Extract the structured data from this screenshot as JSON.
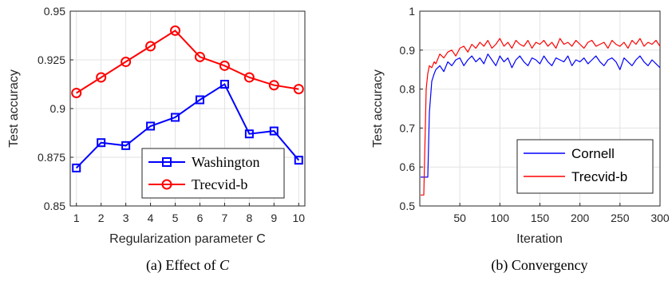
{
  "chart_data": [
    {
      "type": "line",
      "caption": "(a) Effect of C",
      "caption_prefix": "(a) Effect of ",
      "caption_var": "C",
      "xlabel": "Regularization parameter C",
      "ylabel": "Test accuracy",
      "x": [
        1,
        2,
        3,
        4,
        5,
        6,
        7,
        8,
        9,
        10
      ],
      "xlim": [
        0.75,
        10.25
      ],
      "ylim": [
        0.85,
        0.95
      ],
      "xticks": [
        "1",
        "2",
        "3",
        "4",
        "5",
        "6",
        "7",
        "8",
        "9",
        "10"
      ],
      "yticks": [
        "0.85",
        "0.875",
        "0.9",
        "0.925",
        "0.95"
      ],
      "ytick_values": [
        0.85,
        0.875,
        0.9,
        0.925,
        0.95
      ],
      "grid": true,
      "legend_position": "bottom-right",
      "series": [
        {
          "name": "Washington",
          "color": "#0000ff",
          "marker": "square",
          "values": [
            0.8695,
            0.8825,
            0.881,
            0.891,
            0.8955,
            0.9045,
            0.9125,
            0.887,
            0.8885,
            0.8735
          ]
        },
        {
          "name": "Trecvid-b",
          "color": "#ff0000",
          "marker": "circle",
          "values": [
            0.908,
            0.916,
            0.924,
            0.932,
            0.94,
            0.9265,
            0.922,
            0.916,
            0.912,
            0.91
          ]
        }
      ]
    },
    {
      "type": "line",
      "caption": "(b) Convergency",
      "xlabel": "Iteration",
      "ylabel": "Test accuracy",
      "xlim": [
        0,
        300
      ],
      "ylim": [
        0.5,
        1
      ],
      "xticks": [
        "50",
        "100",
        "150",
        "200",
        "250",
        "300"
      ],
      "xtick_values": [
        50,
        100,
        150,
        200,
        250,
        300
      ],
      "yticks": [
        "0.5",
        "0.6",
        "0.7",
        "0.8",
        "0.9",
        "1"
      ],
      "ytick_values": [
        0.5,
        0.6,
        0.7,
        0.8,
        0.9,
        1.0
      ],
      "grid": true,
      "legend_position": "bottom-right",
      "series": [
        {
          "name": "Cornell",
          "color": "#0000ff",
          "x": [
            1,
            5,
            10,
            12,
            15,
            18,
            20,
            25,
            30,
            35,
            40,
            45,
            50,
            55,
            60,
            65,
            70,
            75,
            80,
            85,
            90,
            95,
            100,
            105,
            110,
            115,
            120,
            125,
            130,
            135,
            140,
            145,
            150,
            155,
            160,
            165,
            170,
            175,
            180,
            185,
            190,
            195,
            200,
            205,
            210,
            215,
            220,
            225,
            230,
            235,
            240,
            245,
            250,
            255,
            260,
            265,
            270,
            275,
            280,
            285,
            290,
            295,
            300
          ],
          "values": [
            0.574,
            0.574,
            0.574,
            0.74,
            0.82,
            0.84,
            0.85,
            0.86,
            0.845,
            0.87,
            0.86,
            0.875,
            0.88,
            0.86,
            0.875,
            0.885,
            0.87,
            0.88,
            0.865,
            0.89,
            0.875,
            0.86,
            0.885,
            0.87,
            0.88,
            0.855,
            0.875,
            0.885,
            0.87,
            0.86,
            0.88,
            0.875,
            0.865,
            0.885,
            0.87,
            0.86,
            0.88,
            0.875,
            0.87,
            0.885,
            0.86,
            0.875,
            0.87,
            0.88,
            0.865,
            0.875,
            0.885,
            0.87,
            0.86,
            0.875,
            0.88,
            0.87,
            0.85,
            0.88,
            0.87,
            0.86,
            0.875,
            0.885,
            0.87,
            0.86,
            0.875,
            0.865,
            0.855
          ]
        },
        {
          "name": "Trecvid-b",
          "color": "#ff0000",
          "x": [
            1,
            5,
            8,
            10,
            12,
            15,
            18,
            20,
            25,
            30,
            35,
            40,
            45,
            50,
            55,
            60,
            65,
            70,
            75,
            80,
            85,
            90,
            95,
            100,
            105,
            110,
            115,
            120,
            125,
            130,
            135,
            140,
            145,
            150,
            155,
            160,
            165,
            170,
            175,
            180,
            185,
            190,
            195,
            200,
            205,
            210,
            215,
            220,
            225,
            230,
            235,
            240,
            245,
            250,
            255,
            260,
            265,
            270,
            275,
            280,
            285,
            290,
            295,
            300
          ],
          "values": [
            0.528,
            0.528,
            0.8,
            0.84,
            0.86,
            0.855,
            0.87,
            0.865,
            0.89,
            0.88,
            0.895,
            0.9,
            0.885,
            0.905,
            0.91,
            0.895,
            0.915,
            0.905,
            0.92,
            0.91,
            0.925,
            0.905,
            0.915,
            0.93,
            0.91,
            0.92,
            0.905,
            0.925,
            0.915,
            0.91,
            0.925,
            0.905,
            0.92,
            0.915,
            0.925,
            0.91,
            0.92,
            0.905,
            0.93,
            0.915,
            0.92,
            0.91,
            0.925,
            0.915,
            0.905,
            0.92,
            0.925,
            0.91,
            0.915,
            0.92,
            0.905,
            0.925,
            0.915,
            0.91,
            0.92,
            0.905,
            0.925,
            0.915,
            0.93,
            0.91,
            0.92,
            0.915,
            0.925,
            0.91
          ]
        }
      ]
    }
  ]
}
